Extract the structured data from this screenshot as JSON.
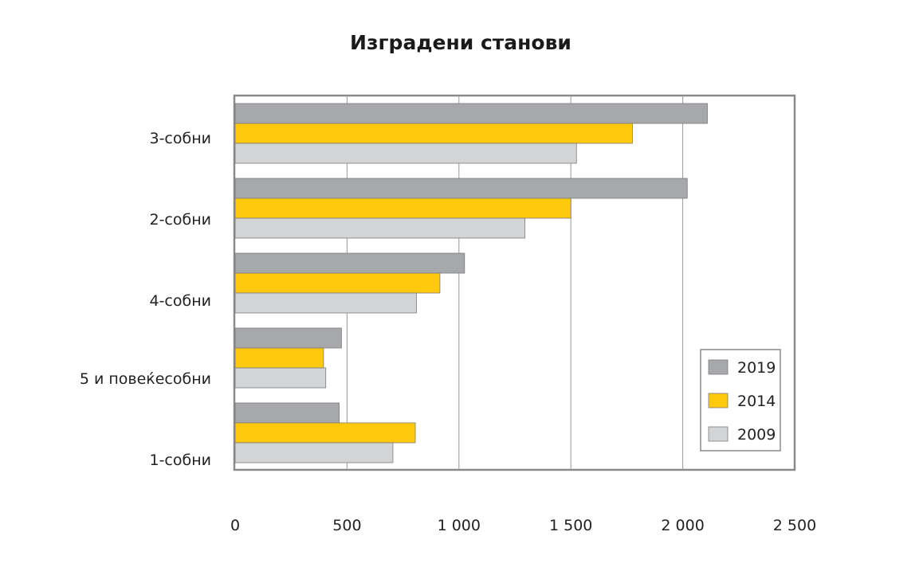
{
  "chart_data": {
    "type": "bar",
    "orientation": "horizontal",
    "title": "Изградени станови",
    "categories": [
      "3-собни",
      "2-собни",
      "4-собни",
      "5 и повеќесобни",
      "1-собни"
    ],
    "series": [
      {
        "name": "2019",
        "color": "#a7a8ab",
        "values": [
          2110,
          2020,
          1025,
          475,
          465
        ]
      },
      {
        "name": "2014",
        "color": "#ffc90e",
        "values": [
          1775,
          1500,
          915,
          395,
          805
        ]
      },
      {
        "name": "2009",
        "color": "#d3d4d6",
        "values": [
          1525,
          1295,
          810,
          405,
          705
        ]
      }
    ],
    "xlim": [
      0,
      2500
    ],
    "xticks": [
      0,
      500,
      1000,
      1500,
      2000,
      2500
    ],
    "xtick_labels": [
      "0",
      "500",
      "1 000",
      "1 500",
      "2 000",
      "2 500"
    ],
    "grid": "vertical",
    "legend_position": "bottom-right"
  }
}
